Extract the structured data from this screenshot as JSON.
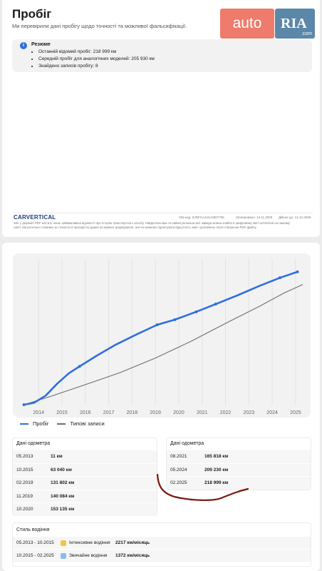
{
  "header": {
    "title": "Пробіг",
    "subtitle": "Ми перевірили дані пробігу щодо точності та можливої фальсифікації.",
    "logo_auto": "auto",
    "logo_ria": "RIA",
    "logo_com": ".com"
  },
  "summary": {
    "title": "Резюме",
    "items": [
      "Останній відомий пробіг: 218 999 км",
      "Середній пробіг для аналогічних моделей: 205 930 км",
      "Знайдено записів пробігу: 8"
    ]
  },
  "footer": {
    "brand": "CARVERTICAL",
    "vin": "VIN-код: SJNFCAJ11U2807706",
    "generated": "Згенеровано: 14.11.2025",
    "valid": "Дійсне до: 14.12.2025",
    "disclaimer_1": "Звіт у форматі PDF містить лише найважливіші відомості про історію транспортного засобу. Найдетальніша та найактуальніша звіт завжди можна знайти в цифровому звіті carVertical на нашому",
    "disclaimer_2": "сайті. Ми ретельно стежимо за точністю й прозорістю даних на момент формування, але не можемо гарантувати відсутність змін і доповнень після створення PDF-файлу."
  },
  "chart_data": {
    "type": "line",
    "x_ticks": [
      "2014",
      "2015",
      "2016",
      "2017",
      "2018",
      "2019",
      "2020",
      "2021",
      "2022",
      "2023",
      "2024",
      "2025"
    ],
    "xlim": [
      2013.2,
      2025.4
    ],
    "ylim": [
      0,
      240000
    ],
    "series": [
      {
        "name": "Пробіг",
        "color": "#2f6fde",
        "points": [
          [
            2013.37,
            11
          ],
          [
            2015.75,
            63040
          ],
          [
            2019.08,
            131802
          ],
          [
            2019.83,
            140084
          ],
          [
            2020.75,
            153135
          ],
          [
            2021.58,
            165818
          ],
          [
            2024.33,
            209230
          ],
          [
            2025.08,
            218999
          ]
        ],
        "curve": [
          [
            2013.37,
            11
          ],
          [
            2013.8,
            3000
          ],
          [
            2014.3,
            15000
          ],
          [
            2014.8,
            35000
          ],
          [
            2015.3,
            52000
          ],
          [
            2015.75,
            63040
          ],
          [
            2016.5,
            81000
          ],
          [
            2017.3,
            99000
          ],
          [
            2018.2,
            116000
          ],
          [
            2019.08,
            131802
          ],
          [
            2019.83,
            140084
          ],
          [
            2020.75,
            153135
          ],
          [
            2021.58,
            165818
          ],
          [
            2022.5,
            180000
          ],
          [
            2023.4,
            195000
          ],
          [
            2024.33,
            209230
          ],
          [
            2025.08,
            218999
          ]
        ]
      },
      {
        "name": "Типові записи",
        "color": "#6e6e6e",
        "curve": [
          [
            2013.37,
            0
          ],
          [
            2014.5,
            13500
          ],
          [
            2016,
            33000
          ],
          [
            2017.5,
            53000
          ],
          [
            2019,
            77000
          ],
          [
            2020.5,
            104000
          ],
          [
            2022,
            134000
          ],
          [
            2023.5,
            163000
          ],
          [
            2024.5,
            184000
          ],
          [
            2025.3,
            198000
          ]
        ]
      }
    ]
  },
  "table_left": {
    "header": "Дані одометра",
    "rows": [
      {
        "date": "05.2013",
        "value": "11 км"
      },
      {
        "date": "10.2015",
        "value": "63 040 км"
      },
      {
        "date": "02.2019",
        "value": "131 802 км"
      },
      {
        "date": "11.2019",
        "value": "140 084 км"
      },
      {
        "date": "10.2020",
        "value": "153 135 км"
      }
    ]
  },
  "table_right": {
    "header": "Дані одометра",
    "rows": [
      {
        "date": "08.2021",
        "value": "165 818 км"
      },
      {
        "date": "05.2024",
        "value": "209 230 км"
      },
      {
        "date": "02.2025",
        "value": "218 999 км"
      }
    ]
  },
  "driving_style": {
    "title": "Стиль водіння",
    "rows": [
      {
        "period": "05.2013 - 10.2015",
        "label": "Інтенсивне водіння",
        "rate": "2217 км/місяць",
        "color": "#f5c542"
      },
      {
        "period": "10.2015 - 02.2025",
        "label": "Звичайне водіння",
        "rate": "1372 км/місяць",
        "color": "#8fb8ee"
      }
    ]
  },
  "colors": {
    "annotation": "#7a1410",
    "accent": "#2f6fde"
  }
}
